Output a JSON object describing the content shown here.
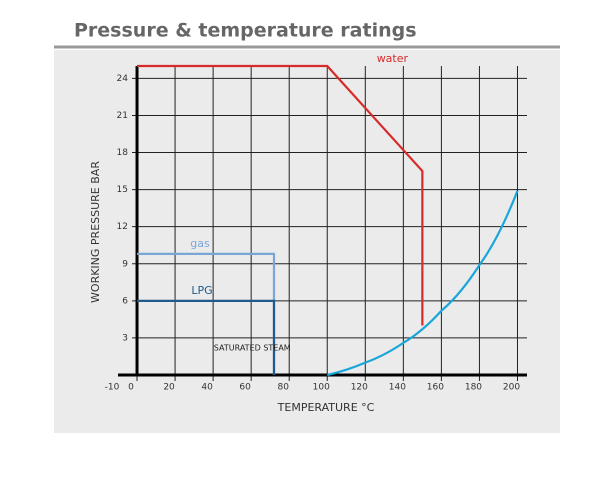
{
  "chart_data": {
    "type": "line",
    "title": "Pressure & temperature ratings",
    "x_label": "TEMPERATURE °C",
    "y_label": "WORKING PRESSURE BAR",
    "xlim": [
      -10,
      205
    ],
    "ylim": [
      0,
      25
    ],
    "xticks": [
      -10,
      0,
      20,
      40,
      60,
      80,
      100,
      120,
      140,
      160,
      180,
      200
    ],
    "yticks": [
      3,
      6,
      9,
      12,
      15,
      18,
      21,
      24
    ],
    "grid": true,
    "series": [
      {
        "name": "water",
        "color": "#d62b2b",
        "x": [
          0,
          100,
          150,
          150
        ],
        "values": [
          25,
          25,
          16.5,
          4
        ]
      },
      {
        "name": "gas",
        "color": "#7aa6d6",
        "x": [
          0,
          72,
          72
        ],
        "values": [
          9.8,
          9.8,
          0
        ]
      },
      {
        "name": "LPG",
        "color": "#1f5a8c",
        "x": [
          0,
          72,
          72
        ],
        "values": [
          6,
          6,
          0
        ]
      },
      {
        "name": "SATURATED STEAM",
        "color": "#1aa6d9",
        "x": [
          100,
          120,
          140,
          160,
          180,
          200
        ],
        "values": [
          0,
          1,
          2.6,
          5.2,
          8.9,
          14.9
        ]
      }
    ]
  }
}
